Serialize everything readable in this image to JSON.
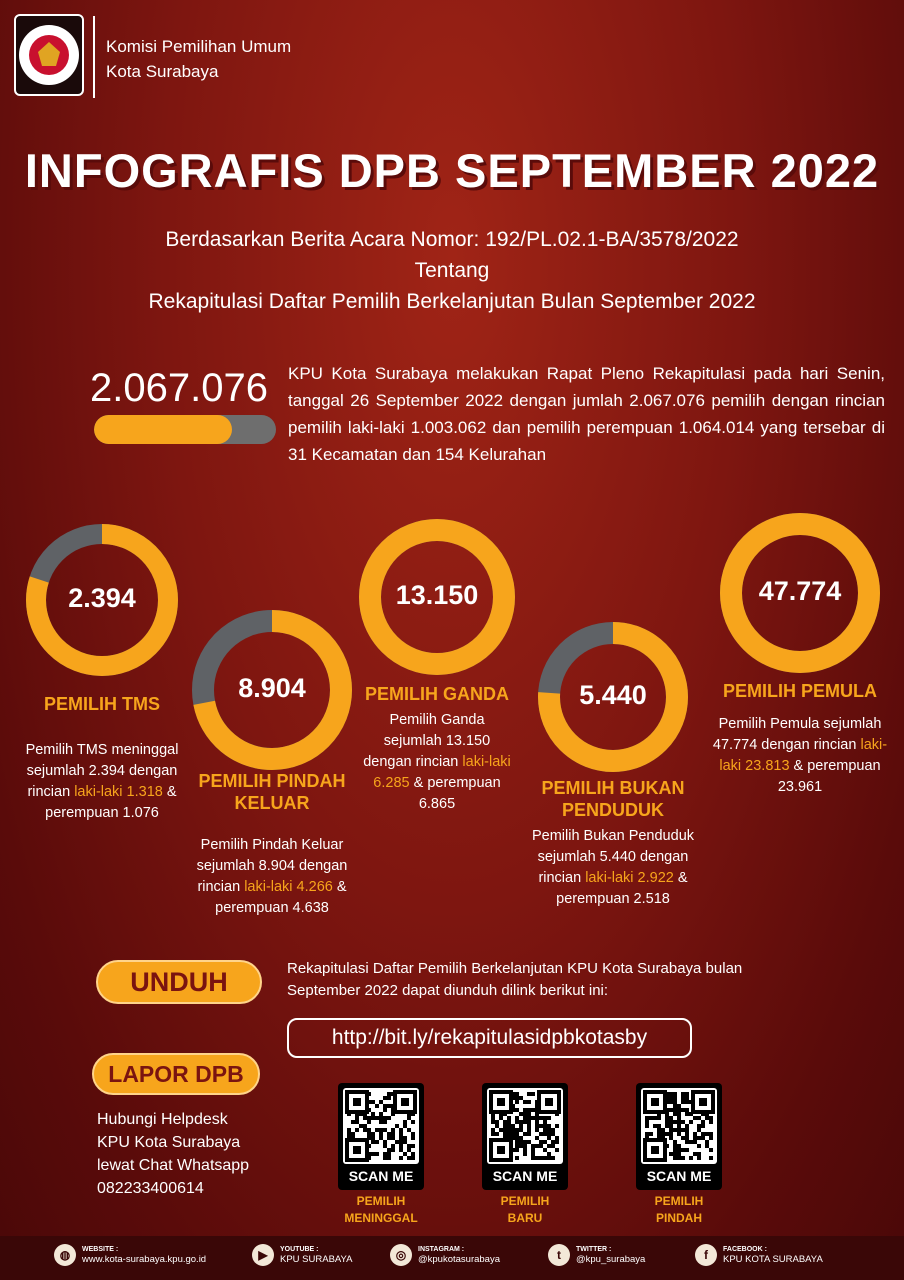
{
  "header": {
    "logo_text": "KOMISI PEMILIHAN UMUM",
    "org_line1": "Komisi Pemilihan Umum",
    "org_line2": "Kota Surabaya"
  },
  "title": "INFOGRAFIS DPB SEPTEMBER 2022",
  "subtitle": [
    "Berdasarkan Berita Acara Nomor: 192/PL.02.1-BA/3578/2022",
    "Tentang",
    "Rekapitulasi Daftar Pemilih Berkelanjutan Bulan September 2022"
  ],
  "summary": {
    "total": "2.067.076",
    "bar_fill": 0.76,
    "text": "KPU Kota Surabaya melakukan Rapat Pleno Rekapitulasi pada hari Senin, tanggal 26 September 2022 dengan jumlah 2.067.076 pemilih dengan rincian pemilih laki-laki 1.003.062 dan pemilih perempuan 1.064.014 yang tersebar di 31 Kecamatan dan 154 Kelurahan"
  },
  "colors": {
    "accent": "#f7a51c",
    "track": "#5f6266",
    "background": "#7e1610"
  },
  "categories": [
    {
      "value": "2.394",
      "fill": 0.8,
      "label": "PEMILIH TMS",
      "desc_a": "Pemilih TMS meninggal sejumlah 2.394 dengan rincian ",
      "desc_hl": "laki-laki 1.318",
      "desc_b": " & perempuan 1.076"
    },
    {
      "value": "8.904",
      "fill": 0.72,
      "label": "PEMILIH PINDAH KELUAR",
      "desc_a": "Pemilih Pindah Keluar sejumlah 8.904 dengan rincian ",
      "desc_hl": "laki-laki 4.266",
      "desc_b": " & perempuan 4.638"
    },
    {
      "value": "13.150",
      "fill": 1,
      "label": "PEMILIH GANDA",
      "desc_a": "Pemilih Ganda sejumlah 13.150 dengan rincian ",
      "desc_hl": "laki-laki 6.285",
      "desc_b": " & perempuan 6.865"
    },
    {
      "value": "5.440",
      "fill": 0.76,
      "label": "PEMILIH BUKAN PENDUDUK",
      "desc_a": "Pemilih Bukan Penduduk sejumlah 5.440 dengan rincian ",
      "desc_hl": "laki-laki 2.922",
      "desc_b": " & perempuan 2.518"
    },
    {
      "value": "47.774",
      "fill": 1,
      "label": "PEMILIH PEMULA",
      "desc_a": "Pemilih Pemula sejumlah 47.774 dengan rincian ",
      "desc_hl": "laki-laki 23.813",
      "desc_b": " & perempuan 23.961"
    }
  ],
  "download": {
    "button": "UNDUH",
    "text": "Rekapitulasi Daftar Pemilih Berkelanjutan KPU Kota Surabaya bulan September 2022 dapat diunduh dilink berikut ini:",
    "link": "http://bit.ly/rekapitulasidpbkotasby"
  },
  "report": {
    "button": "LAPOR DPB",
    "text": "Hubungi Helpdesk KPU Kota Surabaya lewat Chat Whatsapp 082233400614"
  },
  "qr": [
    {
      "scan": "SCAN ME",
      "label": "PEMILIH MENINGGAL"
    },
    {
      "scan": "SCAN ME",
      "label": "PEMILIH BARU"
    },
    {
      "scan": "SCAN ME",
      "label": "PEMILIH PINDAH"
    }
  ],
  "footer": [
    {
      "icon": "globe-icon",
      "key": "WEBSITE :",
      "value": "www.kota-surabaya.kpu.go.id"
    },
    {
      "icon": "youtube-icon",
      "key": "YOUTUBE :",
      "value": "KPU SURABAYA"
    },
    {
      "icon": "instagram-icon",
      "key": "INSTAGRAM :",
      "value": "@kpukotasurabaya"
    },
    {
      "icon": "twitter-icon",
      "key": "TWITTER :",
      "value": "@kpu_surabaya"
    },
    {
      "icon": "facebook-icon",
      "key": "FACEBOOK :",
      "value": "KPU KOTA SURABAYA"
    }
  ]
}
